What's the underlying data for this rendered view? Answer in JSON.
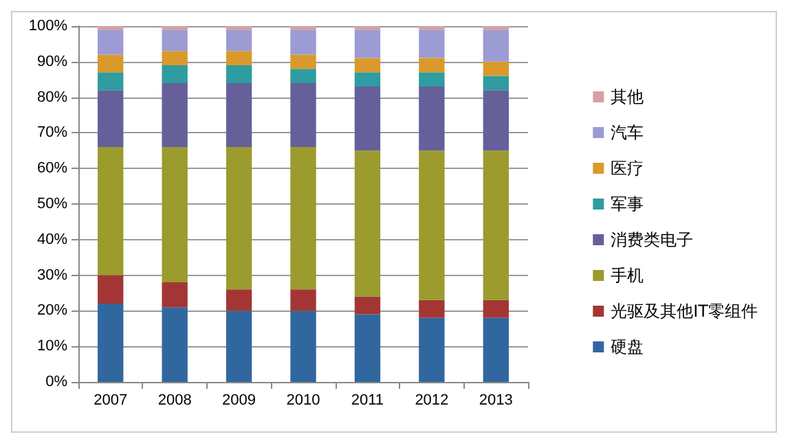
{
  "chart_data": {
    "type": "bar",
    "stacked": true,
    "categories": [
      "2007",
      "2008",
      "2009",
      "2010",
      "2011",
      "2012",
      "2013"
    ],
    "series": [
      {
        "name": "硬盘",
        "color": "#31679f",
        "values": [
          22,
          21,
          20,
          20,
          19,
          18,
          18
        ]
      },
      {
        "name": "光驱及其他IT零组件",
        "color": "#a33634",
        "values": [
          8,
          7,
          6,
          6,
          5,
          5,
          5
        ]
      },
      {
        "name": "手机",
        "color": "#9b9b2e",
        "values": [
          36,
          38,
          40,
          40,
          41,
          42,
          42
        ]
      },
      {
        "name": "消费类电子",
        "color": "#65609a",
        "values": [
          16,
          18,
          18,
          18,
          18,
          18,
          17
        ]
      },
      {
        "name": "军事",
        "color": "#2e9ca0",
        "values": [
          5,
          5,
          5,
          4,
          4,
          4,
          4
        ]
      },
      {
        "name": "医疗",
        "color": "#d99a2b",
        "values": [
          5,
          4,
          4,
          4,
          4,
          4,
          4
        ]
      },
      {
        "name": "汽车",
        "color": "#9d9bd3",
        "values": [
          7,
          6,
          6,
          7,
          8,
          8,
          9
        ]
      },
      {
        "name": "其他",
        "color": "#d6a0a0",
        "values": [
          1,
          1,
          1,
          1,
          1,
          1,
          1
        ]
      }
    ],
    "ylim": [
      0,
      100
    ],
    "yticks": [
      {
        "value": 0,
        "label": "0%"
      },
      {
        "value": 10,
        "label": "10%"
      },
      {
        "value": 20,
        "label": "20%"
      },
      {
        "value": 30,
        "label": "30%"
      },
      {
        "value": 40,
        "label": "40%"
      },
      {
        "value": 50,
        "label": "50%"
      },
      {
        "value": 60,
        "label": "60%"
      },
      {
        "value": 70,
        "label": "70%"
      },
      {
        "value": 80,
        "label": "80%"
      },
      {
        "value": 90,
        "label": "90%"
      },
      {
        "value": 100,
        "label": "100%"
      }
    ],
    "grid": "y",
    "legend": "right"
  }
}
